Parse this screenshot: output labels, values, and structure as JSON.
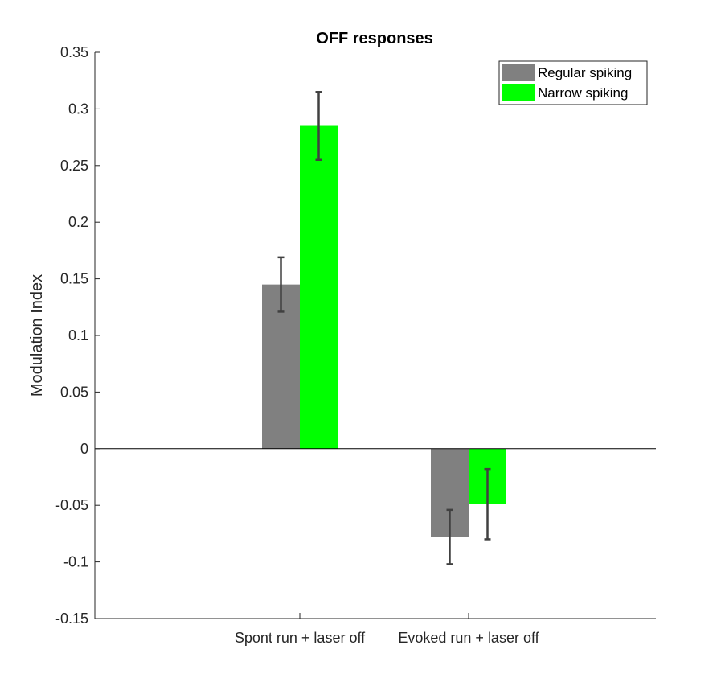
{
  "chart_data": {
    "type": "bar",
    "title": "OFF responses",
    "xlabel": "",
    "ylabel": "Modulation Index",
    "categories": [
      "Spont run + laser off",
      "Evoked run + laser off"
    ],
    "series": [
      {
        "name": "Regular spiking",
        "color": "#808080",
        "values": [
          0.145,
          -0.078
        ],
        "errors": [
          0.024,
          0.024
        ]
      },
      {
        "name": "Narrow spiking",
        "color": "#00ff00",
        "values": [
          0.285,
          -0.049
        ],
        "errors": [
          0.03,
          0.031
        ]
      }
    ],
    "ylim": [
      -0.15,
      0.35
    ],
    "yticks": [
      "0.35",
      "0.3",
      "0.25",
      "0.2",
      "0.15",
      "0.1",
      "0.05",
      "0",
      "-0.05",
      "-0.1",
      "-0.15"
    ],
    "grid": false,
    "legend_position": "top-right"
  }
}
